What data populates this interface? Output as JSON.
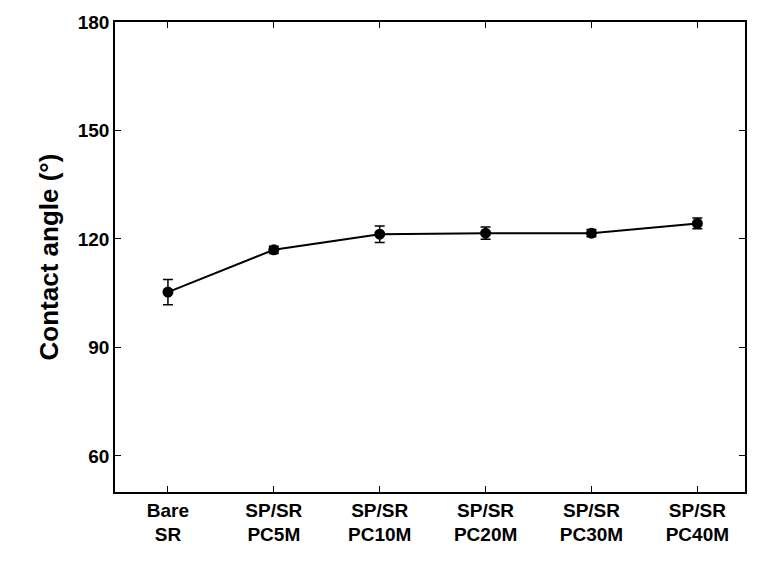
{
  "chart_data": {
    "type": "line",
    "y_label": "Contact angle (°)",
    "categories": [
      "Bare SR",
      "SP/SR PC5M",
      "SP/SR PC10M",
      "SP/SR PC20M",
      "SP/SR PC30M",
      "SP/SR PC40M"
    ],
    "values": [
      105.3,
      117.0,
      121.3,
      121.6,
      121.6,
      124.3
    ],
    "errors": [
      3.5,
      1.0,
      2.3,
      1.7,
      1.0,
      1.5
    ],
    "color": "#000000",
    "marker": "circle",
    "line_style": "solid",
    "ylim": [
      50,
      180
    ],
    "yticks": [
      60,
      90,
      120,
      150,
      180
    ],
    "grid": false
  }
}
